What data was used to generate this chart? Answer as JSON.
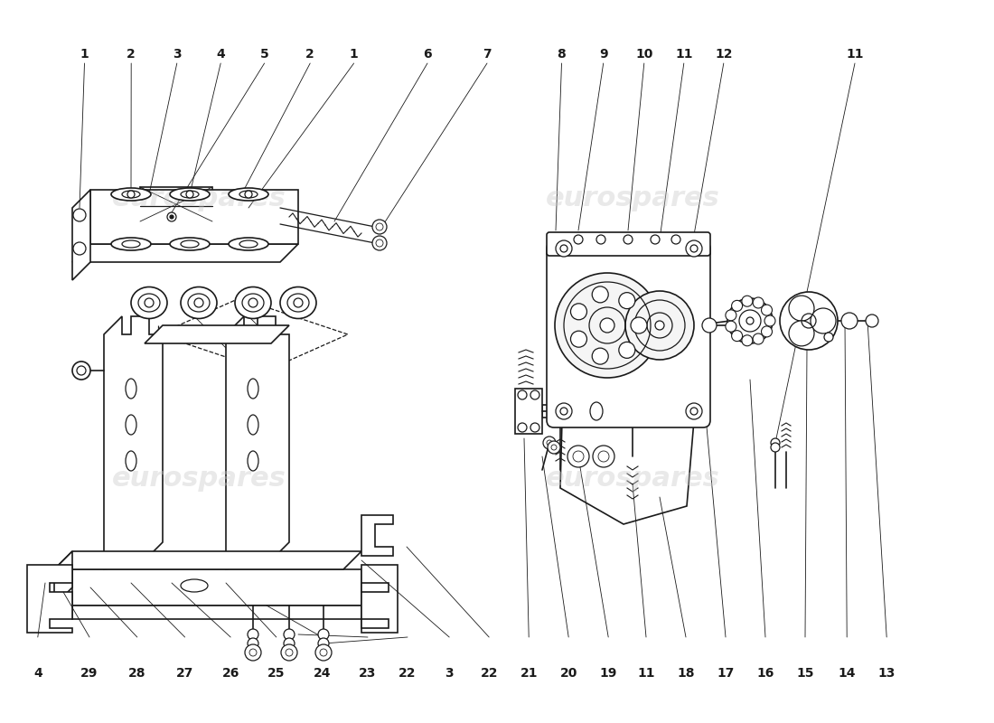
{
  "bg_color": "#ffffff",
  "line_color": "#1a1a1a",
  "wm_color": "#cccccc",
  "lw_main": 1.2,
  "lw_med": 0.9,
  "lw_thin": 0.6,
  "label_fontsize": 10,
  "top_left_labels": [
    [
      "1",
      0.085
    ],
    [
      "2",
      0.132
    ],
    [
      "3",
      0.178
    ],
    [
      "4",
      0.222
    ],
    [
      "5",
      0.266
    ],
    [
      "2",
      0.312
    ],
    [
      "1",
      0.356
    ],
    [
      "6",
      0.43
    ],
    [
      "7",
      0.49
    ]
  ],
  "top_right_labels": [
    [
      "8",
      0.565
    ],
    [
      "9",
      0.607
    ],
    [
      "10",
      0.648
    ],
    [
      "11",
      0.688
    ],
    [
      "12",
      0.728
    ],
    [
      "11",
      0.86
    ]
  ],
  "bottom_labels": [
    [
      "4",
      0.038
    ],
    [
      "29",
      0.09
    ],
    [
      "28",
      0.138
    ],
    [
      "27",
      0.186
    ],
    [
      "26",
      0.232
    ],
    [
      "25",
      0.278
    ],
    [
      "24",
      0.324
    ],
    [
      "23",
      0.37
    ],
    [
      "22",
      0.41
    ],
    [
      "3",
      0.452
    ],
    [
      "22",
      0.492
    ],
    [
      "21",
      0.532
    ],
    [
      "20",
      0.572
    ],
    [
      "19",
      0.612
    ],
    [
      "11",
      0.65
    ],
    [
      "18",
      0.69
    ],
    [
      "17",
      0.73
    ],
    [
      "16",
      0.77
    ],
    [
      "15",
      0.81
    ],
    [
      "14",
      0.852
    ],
    [
      "13",
      0.892
    ]
  ]
}
